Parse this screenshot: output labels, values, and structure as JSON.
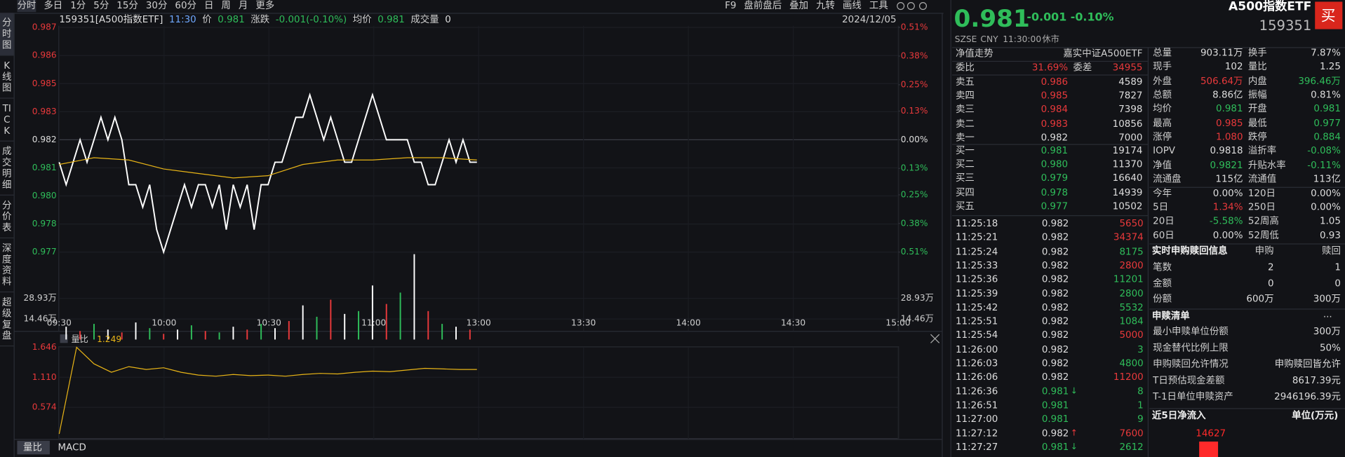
{
  "toolbar": {
    "left": [
      "分时",
      "多日",
      "1分",
      "5分",
      "15分",
      "30分",
      "60分",
      "日",
      "周",
      "月",
      "更多"
    ],
    "right": [
      "F9",
      "盘前盘后",
      "叠加",
      "九转",
      "画线",
      "工具"
    ]
  },
  "side_tabs": [
    "分时图",
    "K线图",
    "TICK",
    "成交明细",
    "分价表",
    "深度资料",
    "超级复盘"
  ],
  "info": {
    "symbol": "159351[A500指数ETF]",
    "time": "11:30",
    "price_label": "价",
    "price": "0.981",
    "change_label": "涨跌",
    "change": "-0.001(-0.10%)",
    "avg_label": "均价",
    "avg": "0.981",
    "volume_label": "成交量",
    "volume": "0",
    "date": "2024/12/05"
  },
  "chart_data": [
    {
      "type": "line",
      "time_labels": [
        "09:30",
        "10:00",
        "10:30",
        "11:00",
        "13:00",
        "13:30",
        "14:00",
        "14:30",
        "15:00"
      ],
      "ylim": [
        0.977,
        0.987
      ],
      "yticks": [
        0.987,
        {
          "value": 0.98575,
          "label": "0.986"
        },
        {
          "value": 0.9845,
          "label": "0.985"
        },
        {
          "value": 0.98325,
          "label": "0.983"
        },
        0.982,
        {
          "value": 0.98075,
          "label": "0.981"
        },
        {
          "value": 0.9795,
          "label": "0.980"
        },
        {
          "value": 0.97825,
          "label": "0.978"
        },
        0.977
      ],
      "ytick_colors": [
        "#e8393b",
        "#e8393b",
        "#e8393b",
        "#e8393b",
        "#dddddd",
        "#2fbd5a",
        "#2fbd5a",
        "#2fbd5a",
        "#2fbd5a"
      ],
      "y2lim": [
        -0.51,
        0.51
      ],
      "y2ticks": [
        {
          "value": 0.51,
          "label": "0.51%"
        },
        {
          "value": 0.38,
          "label": "0.38%"
        },
        {
          "value": 0.25,
          "label": "0.25%"
        },
        {
          "value": 0.13,
          "label": "0.13%"
        },
        {
          "value": 0,
          "label": "0.00%"
        },
        {
          "value": -0.13,
          "label": "0.13%"
        },
        {
          "value": -0.25,
          "label": "0.25%"
        },
        {
          "value": -0.38,
          "label": "0.38%"
        },
        {
          "value": -0.51,
          "label": "0.51%"
        }
      ],
      "series": [
        {
          "color": "#ffffff",
          "values": [
            0.981,
            0.98,
            0.981,
            0.982,
            0.981,
            0.982,
            0.983,
            0.982,
            0.983,
            0.982,
            0.98,
            0.98,
            0.979,
            0.98,
            0.978,
            0.977,
            0.978,
            0.979,
            0.98,
            0.979,
            0.98,
            0.98,
            0.979,
            0.98,
            0.978,
            0.98,
            0.979,
            0.98,
            0.978,
            0.98,
            0.98,
            0.981,
            0.981,
            0.982,
            0.983,
            0.983,
            0.984,
            0.983,
            0.982,
            0.983,
            0.982,
            0.981,
            0.981,
            0.982,
            0.983,
            0.984,
            0.983,
            0.982,
            0.982,
            0.982,
            0.982,
            0.981,
            0.981,
            0.98,
            0.98,
            0.981,
            0.982,
            0.981,
            0.982,
            0.981,
            0.981
          ]
        },
        {
          "color": "#e8b417",
          "values": [
            0.9809,
            0.9812,
            0.9811,
            0.9807,
            0.9805,
            0.9803,
            0.9804,
            0.9809,
            0.9811,
            0.9811,
            0.9812,
            0.9812,
            0.9811
          ]
        }
      ]
    },
    {
      "type": "bar",
      "ylim": [
        0,
        60.27
      ],
      "yticks": [
        {
          "value": 28.93,
          "label": "28.93万"
        },
        {
          "value": 14.46,
          "label": "14.46万"
        }
      ],
      "values": [
        9,
        6,
        11,
        7,
        5,
        12,
        8,
        4,
        7,
        10,
        6,
        5,
        9,
        7,
        11,
        8,
        13,
        24,
        16,
        28,
        18,
        20,
        38,
        25,
        33,
        60,
        20,
        11,
        9,
        7
      ],
      "colors": [
        "#ffffff",
        "#e8393b",
        "#2fbd5a",
        "#ffffff",
        "#e8393b",
        "#ffffff",
        "#2fbd5a",
        "#e8393b",
        "#ffffff",
        "#2fbd5a",
        "#e8393b",
        "#2fbd5a",
        "#ffffff",
        "#e8393b",
        "#2fbd5a",
        "#ffffff",
        "#e8393b",
        "#ffffff",
        "#2fbd5a",
        "#e8393b",
        "#ffffff",
        "#2fbd5a",
        "#ffffff",
        "#e8393b",
        "#2fbd5a",
        "#ffffff",
        "#e8393b",
        "#2fbd5a",
        "#ffffff",
        "#e8393b"
      ]
    },
    {
      "type": "line",
      "title": "量比",
      "current": 1.249,
      "ylim": [
        0.04,
        1.646
      ],
      "yticks": [
        1.646,
        {
          "value": 1.11,
          "label": "1.110"
        },
        0.574
      ],
      "color": "#e8b417",
      "values": [
        0.1,
        1.646,
        1.35,
        1.2,
        1.3,
        1.25,
        1.28,
        1.2,
        1.15,
        1.13,
        1.16,
        1.14,
        1.15,
        1.13,
        1.16,
        1.18,
        1.17,
        1.2,
        1.22,
        1.21,
        1.24,
        1.27,
        1.26,
        1.25,
        1.249
      ],
      "tabs": [
        "量比",
        "MACD"
      ]
    },
    {
      "type": "bar",
      "title": "近5日净流入",
      "unit_label": "单位(万元)",
      "values": [
        14627
      ],
      "color": "#ff2a2a"
    }
  ],
  "quote": {
    "name": "A500指数ETF",
    "code": "159351",
    "buy": "买",
    "price": "0.981",
    "change": "-0.001",
    "change_pct": "-0.10%",
    "exchange": "SZSE",
    "currency": "CNY",
    "time": "11:30:00",
    "status": "休市"
  },
  "order_book": {
    "tab": "净值走势",
    "fund": "嘉实中证A500ETF",
    "ratio_label": "委比",
    "ratio": "31.69%",
    "diff_label": "委差",
    "diff": "34955",
    "asks": [
      {
        "label": "卖五",
        "price": "0.986",
        "volume": "4589",
        "color": "#e8393b"
      },
      {
        "label": "卖四",
        "price": "0.985",
        "volume": "7827",
        "color": "#e8393b"
      },
      {
        "label": "卖三",
        "price": "0.984",
        "volume": "7398",
        "color": "#e8393b"
      },
      {
        "label": "卖二",
        "price": "0.983",
        "volume": "10856",
        "color": "#e8393b"
      },
      {
        "label": "卖一",
        "price": "0.982",
        "volume": "7000",
        "color": "#dddddd"
      }
    ],
    "bids": [
      {
        "label": "买一",
        "price": "0.981",
        "volume": "19174",
        "color": "#2fbd5a"
      },
      {
        "label": "买二",
        "price": "0.980",
        "volume": "11370",
        "color": "#2fbd5a"
      },
      {
        "label": "买三",
        "price": "0.979",
        "volume": "16640",
        "color": "#2fbd5a"
      },
      {
        "label": "买四",
        "price": "0.978",
        "volume": "14939",
        "color": "#2fbd5a"
      },
      {
        "label": "买五",
        "price": "0.977",
        "volume": "10502",
        "color": "#2fbd5a"
      }
    ]
  },
  "trades": [
    {
      "time": "11:25:18",
      "price": "0.982",
      "volume": "5650",
      "price_color": "#dddddd",
      "volume_color": "#e8393b"
    },
    {
      "time": "11:25:21",
      "price": "0.982",
      "volume": "34374",
      "price_color": "#dddddd",
      "volume_color": "#e8393b"
    },
    {
      "time": "11:25:24",
      "price": "0.982",
      "volume": "8175",
      "price_color": "#dddddd",
      "volume_color": "#2fbd5a"
    },
    {
      "time": "11:25:33",
      "price": "0.982",
      "volume": "2800",
      "price_color": "#dddddd",
      "volume_color": "#e8393b"
    },
    {
      "time": "11:25:36",
      "price": "0.982",
      "volume": "11201",
      "price_color": "#dddddd",
      "volume_color": "#2fbd5a"
    },
    {
      "time": "11:25:39",
      "price": "0.982",
      "volume": "2800",
      "price_color": "#dddddd",
      "volume_color": "#2fbd5a"
    },
    {
      "time": "11:25:42",
      "price": "0.982",
      "volume": "5532",
      "price_color": "#dddddd",
      "volume_color": "#2fbd5a"
    },
    {
      "time": "11:25:51",
      "price": "0.982",
      "volume": "1084",
      "price_color": "#dddddd",
      "volume_color": "#2fbd5a"
    },
    {
      "time": "11:25:54",
      "price": "0.982",
      "volume": "5000",
      "price_color": "#dddddd",
      "volume_color": "#e8393b"
    },
    {
      "time": "11:26:00",
      "price": "0.982",
      "volume": "3",
      "price_color": "#dddddd",
      "volume_color": "#2fbd5a"
    },
    {
      "time": "11:26:03",
      "price": "0.982",
      "volume": "4800",
      "price_color": "#dddddd",
      "volume_color": "#2fbd5a"
    },
    {
      "time": "11:26:06",
      "price": "0.982",
      "volume": "11200",
      "price_color": "#dddddd",
      "volume_color": "#e8393b"
    },
    {
      "time": "11:26:36",
      "price": "0.981",
      "arrow": "↓",
      "volume": "8",
      "price_color": "#2fbd5a",
      "volume_color": "#2fbd5a"
    },
    {
      "time": "11:26:51",
      "price": "0.981",
      "volume": "1",
      "price_color": "#2fbd5a",
      "volume_color": "#2fbd5a"
    },
    {
      "time": "11:27:00",
      "price": "0.981",
      "volume": "9",
      "price_color": "#2fbd5a",
      "volume_color": "#2fbd5a"
    },
    {
      "time": "11:27:12",
      "price": "0.982",
      "arrow": "↑",
      "volume": "7600",
      "price_color": "#dddddd",
      "volume_color": "#e8393b"
    },
    {
      "time": "11:27:27",
      "price": "0.981",
      "arrow": "↓",
      "volume": "2612",
      "price_color": "#2fbd5a",
      "volume_color": "#2fbd5a"
    }
  ],
  "stats": [
    {
      "cells": [
        "总量",
        "903.11万",
        "换手",
        "7.87%"
      ],
      "colors": [
        "#dddddd",
        "#dddddd"
      ]
    },
    {
      "cells": [
        "现手",
        "102",
        "量比",
        "1.25"
      ],
      "colors": [
        "#dddddd",
        "#dddddd"
      ]
    },
    {
      "cells": [
        "外盘",
        "506.64万",
        "内盘",
        "396.46万"
      ],
      "colors": [
        "#e8393b",
        "#2fbd5a"
      ]
    },
    {
      "cells": [
        "总额",
        "8.86亿",
        "振幅",
        "0.81%"
      ],
      "colors": [
        "#dddddd",
        "#dddddd"
      ]
    },
    {
      "cells": [
        "均价",
        "0.981",
        "开盘",
        "0.981"
      ],
      "colors": [
        "#2fbd5a",
        "#2fbd5a"
      ]
    },
    {
      "cells": [
        "最高",
        "0.985",
        "最低",
        "0.977"
      ],
      "colors": [
        "#e8393b",
        "#2fbd5a"
      ]
    },
    {
      "cells": [
        "涨停",
        "1.080",
        "跌停",
        "0.884"
      ],
      "colors": [
        "#e8393b",
        "#2fbd5a"
      ]
    },
    {
      "cells": [
        "IOPV",
        "0.9818",
        "溢折率",
        "-0.08%"
      ],
      "colors": [
        "#dddddd",
        "#2fbd5a"
      ]
    },
    {
      "cells": [
        "净值",
        "0.9821",
        "升贴水率",
        "-0.11%"
      ],
      "colors": [
        "#2fbd5a",
        "#2fbd5a"
      ]
    },
    {
      "cells": [
        "流通盘",
        "115亿",
        "流通值",
        "113亿"
      ],
      "colors": [
        "#dddddd",
        "#dddddd"
      ]
    },
    {
      "cells": [
        "今年",
        "0.00%",
        "120日",
        "0.00%"
      ],
      "colors": [
        "#dddddd",
        "#dddddd"
      ]
    },
    {
      "cells": [
        "5日",
        "1.34%",
        "250日",
        "0.00%"
      ],
      "colors": [
        "#e8393b",
        "#dddddd"
      ]
    },
    {
      "cells": [
        "20日",
        "-5.58%",
        "52周高",
        "1.05"
      ],
      "colors": [
        "#2fbd5a",
        "#dddddd"
      ]
    },
    {
      "cells": [
        "60日",
        "0.00%",
        "52周低",
        "0.93"
      ],
      "colors": [
        "#dddddd",
        "#dddddd"
      ]
    }
  ],
  "subscription": {
    "header": "实时申购赎回信息",
    "cols": [
      "申购",
      "赎回"
    ],
    "rows": [
      [
        "笔数",
        "2",
        "1"
      ],
      [
        "金额",
        "0",
        "0"
      ],
      [
        "份额",
        "600万",
        "300万"
      ]
    ]
  },
  "redemption_list": {
    "header": "申赎清单",
    "more": "...",
    "rows": [
      [
        "最小申赎单位份额",
        "300万"
      ],
      [
        "现金替代比例上限",
        "50%"
      ],
      [
        "申购赎回允许情况",
        "申购赎回皆允许"
      ],
      [
        "T日预估现金差额",
        "8617.39元"
      ],
      [
        "T-1日单位申赎资产",
        "2946196.39元"
      ]
    ]
  }
}
